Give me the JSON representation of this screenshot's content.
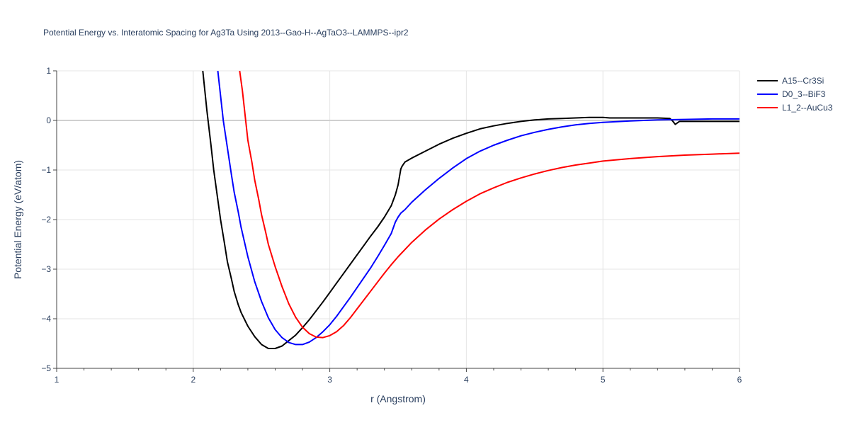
{
  "chart_data": {
    "type": "line",
    "title": "Potential Energy vs. Interatomic Spacing for Ag3Ta Using 2013--Gao-H--AgTaO3--LAMMPS--ipr2",
    "xlabel": "r (Angstrom)",
    "ylabel": "Potential Energy (eV/atom)",
    "xlim": [
      1,
      6
    ],
    "ylim": [
      -5,
      1
    ],
    "xticks": [
      1,
      2,
      3,
      4,
      5,
      6
    ],
    "yticks": [
      -5,
      -4,
      -3,
      -2,
      -1,
      0,
      1
    ],
    "xtick_labels": [
      "1",
      "2",
      "3",
      "4",
      "5",
      "6"
    ],
    "ytick_labels": [
      "−5",
      "−4",
      "−3",
      "−2",
      "−1",
      "0",
      "1"
    ],
    "grid": true,
    "legend_position": "top-right",
    "series": [
      {
        "name": "A15--Cr3Si",
        "color": "#000000",
        "x": [
          2.07,
          2.1,
          2.13,
          2.15,
          2.18,
          2.2,
          2.23,
          2.25,
          2.28,
          2.3,
          2.33,
          2.35,
          2.4,
          2.45,
          2.5,
          2.55,
          2.6,
          2.65,
          2.7,
          2.75,
          2.8,
          2.85,
          2.9,
          2.95,
          3.0,
          3.05,
          3.1,
          3.15,
          3.2,
          3.25,
          3.3,
          3.35,
          3.4,
          3.45,
          3.48,
          3.5,
          3.52,
          3.53,
          3.55,
          3.6,
          3.7,
          3.8,
          3.9,
          4.0,
          4.1,
          4.2,
          4.3,
          4.4,
          4.5,
          4.6,
          4.7,
          4.8,
          4.9,
          5.0,
          5.05,
          5.1,
          5.2,
          5.3,
          5.4,
          5.49,
          5.51,
          5.53,
          5.56,
          5.6,
          5.7,
          5.8,
          5.9,
          6.0
        ],
        "y": [
          1.0,
          0.2,
          -0.5,
          -1.0,
          -1.6,
          -2.0,
          -2.5,
          -2.85,
          -3.2,
          -3.45,
          -3.72,
          -3.87,
          -4.15,
          -4.36,
          -4.52,
          -4.6,
          -4.6,
          -4.55,
          -4.44,
          -4.33,
          -4.18,
          -4.02,
          -3.84,
          -3.66,
          -3.47,
          -3.28,
          -3.09,
          -2.9,
          -2.71,
          -2.52,
          -2.33,
          -2.15,
          -1.95,
          -1.72,
          -1.5,
          -1.3,
          -0.98,
          -0.92,
          -0.84,
          -0.76,
          -0.62,
          -0.48,
          -0.36,
          -0.26,
          -0.17,
          -0.11,
          -0.06,
          -0.02,
          0.01,
          0.03,
          0.04,
          0.05,
          0.06,
          0.06,
          0.05,
          0.05,
          0.05,
          0.05,
          0.05,
          0.04,
          -0.01,
          -0.08,
          -0.02,
          -0.02,
          -0.02,
          -0.02,
          -0.02,
          -0.02
        ]
      },
      {
        "name": "D0_3--BiF3",
        "color": "#0000ff",
        "x": [
          2.18,
          2.2,
          2.22,
          2.25,
          2.28,
          2.3,
          2.33,
          2.35,
          2.4,
          2.45,
          2.5,
          2.55,
          2.6,
          2.65,
          2.7,
          2.75,
          2.8,
          2.85,
          2.9,
          2.95,
          3.0,
          3.05,
          3.1,
          3.15,
          3.2,
          3.25,
          3.3,
          3.35,
          3.4,
          3.45,
          3.48,
          3.5,
          3.52,
          3.55,
          3.6,
          3.7,
          3.8,
          3.9,
          4.0,
          4.1,
          4.2,
          4.3,
          4.4,
          4.5,
          4.6,
          4.7,
          4.8,
          4.9,
          5.0,
          5.2,
          5.4,
          5.6,
          5.8,
          6.0
        ],
        "y": [
          1.0,
          0.5,
          0.0,
          -0.55,
          -1.1,
          -1.45,
          -1.85,
          -2.15,
          -2.75,
          -3.25,
          -3.65,
          -3.98,
          -4.22,
          -4.38,
          -4.48,
          -4.52,
          -4.52,
          -4.47,
          -4.38,
          -4.26,
          -4.12,
          -3.95,
          -3.76,
          -3.57,
          -3.37,
          -3.17,
          -2.97,
          -2.75,
          -2.52,
          -2.28,
          -2.05,
          -1.95,
          -1.87,
          -1.8,
          -1.65,
          -1.4,
          -1.17,
          -0.96,
          -0.77,
          -0.62,
          -0.5,
          -0.4,
          -0.31,
          -0.24,
          -0.18,
          -0.13,
          -0.09,
          -0.06,
          -0.04,
          -0.01,
          0.01,
          0.02,
          0.03,
          0.03
        ]
      },
      {
        "name": "L1_2--AuCu3",
        "color": "#ff0000",
        "x": [
          2.34,
          2.36,
          2.38,
          2.4,
          2.43,
          2.45,
          2.48,
          2.5,
          2.53,
          2.55,
          2.6,
          2.65,
          2.7,
          2.75,
          2.8,
          2.85,
          2.9,
          2.95,
          3.0,
          3.05,
          3.1,
          3.15,
          3.2,
          3.25,
          3.3,
          3.35,
          3.4,
          3.45,
          3.5,
          3.6,
          3.7,
          3.8,
          3.9,
          4.0,
          4.1,
          4.2,
          4.3,
          4.4,
          4.5,
          4.6,
          4.7,
          4.8,
          4.9,
          5.0,
          5.2,
          5.4,
          5.6,
          5.8,
          6.0
        ],
        "y": [
          1.0,
          0.6,
          0.1,
          -0.4,
          -0.85,
          -1.2,
          -1.6,
          -1.9,
          -2.25,
          -2.5,
          -2.95,
          -3.35,
          -3.7,
          -3.97,
          -4.17,
          -4.3,
          -4.37,
          -4.38,
          -4.34,
          -4.26,
          -4.14,
          -3.98,
          -3.8,
          -3.62,
          -3.44,
          -3.26,
          -3.08,
          -2.91,
          -2.75,
          -2.46,
          -2.21,
          -1.99,
          -1.8,
          -1.63,
          -1.48,
          -1.36,
          -1.25,
          -1.16,
          -1.08,
          -1.01,
          -0.95,
          -0.9,
          -0.86,
          -0.82,
          -0.77,
          -0.73,
          -0.7,
          -0.68,
          -0.66
        ]
      }
    ]
  }
}
